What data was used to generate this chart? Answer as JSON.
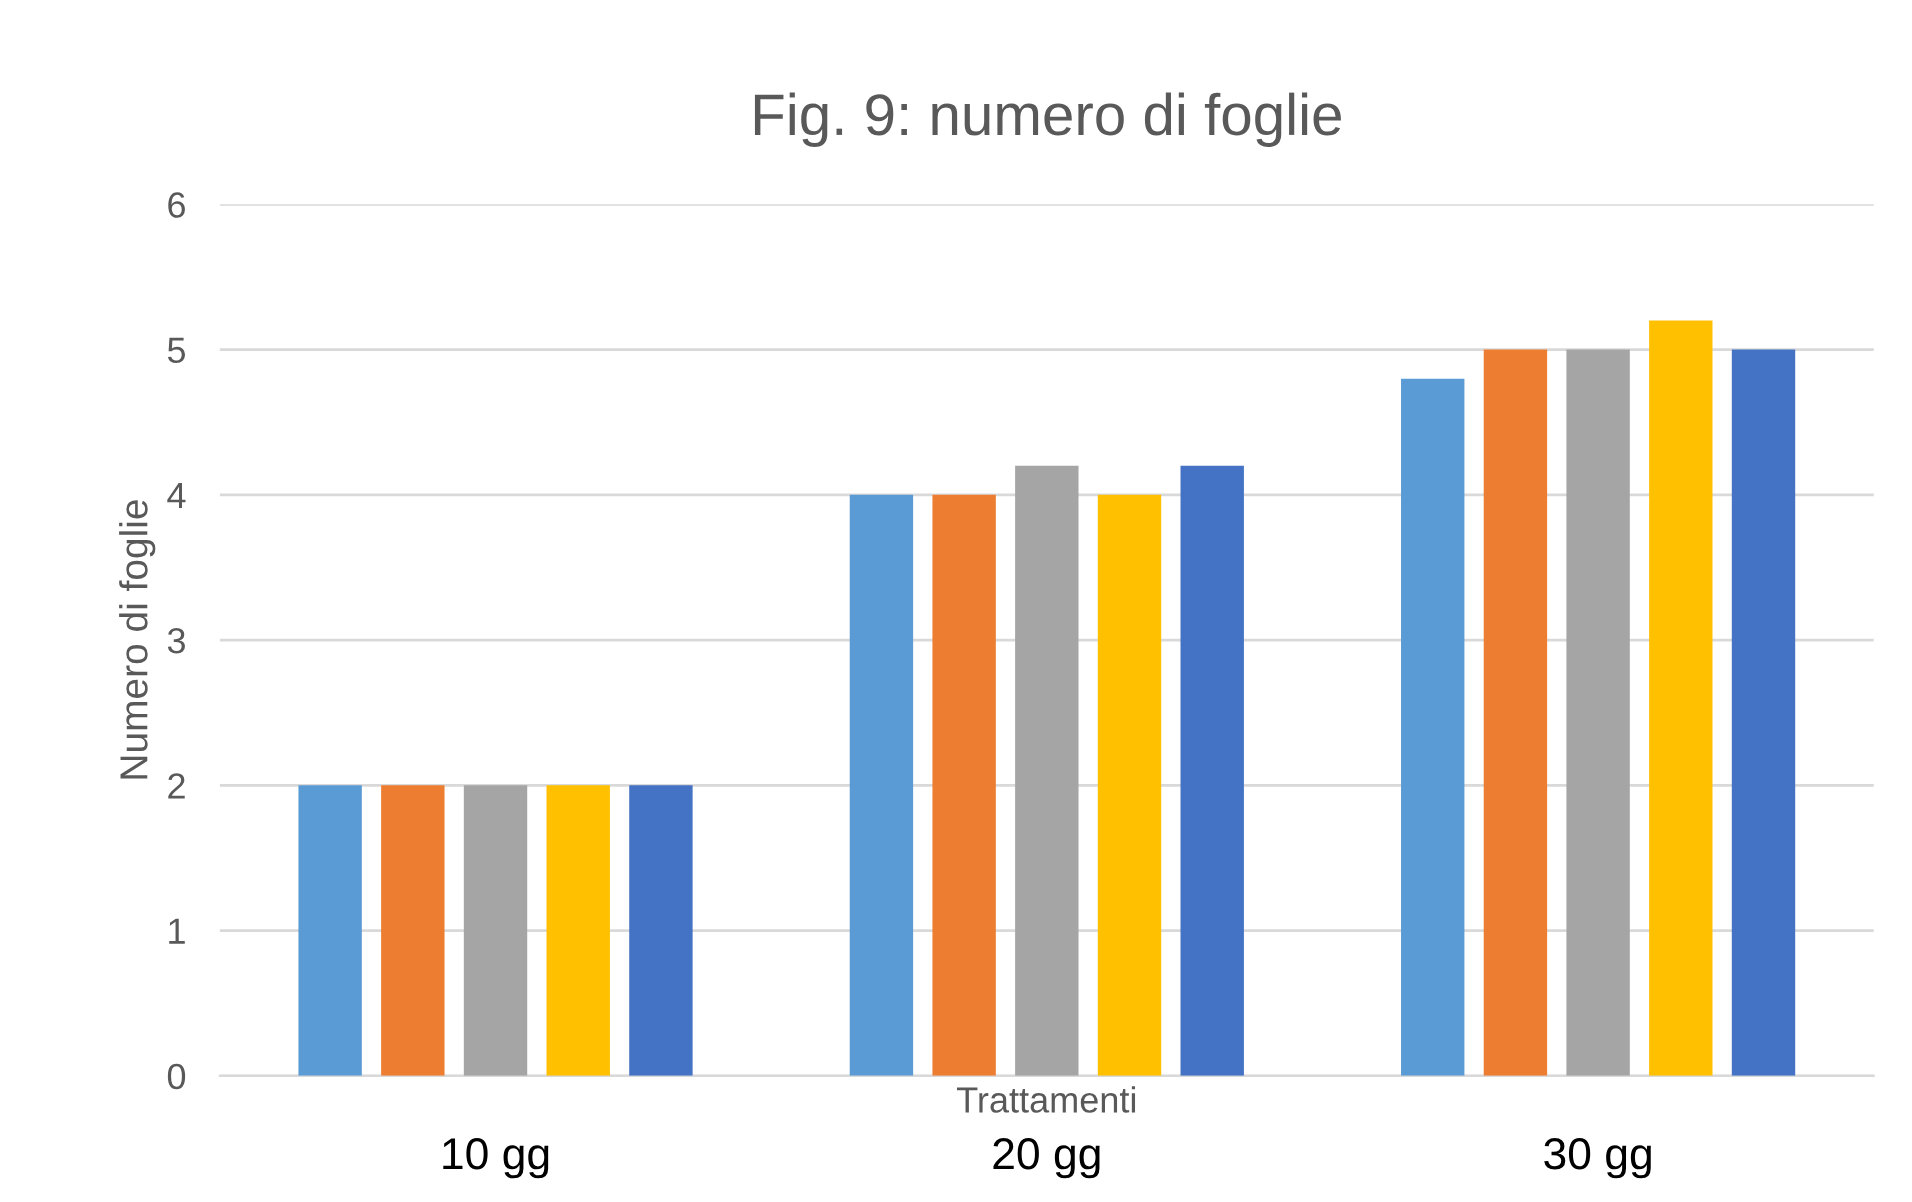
{
  "chart_data": {
    "type": "bar",
    "title": "Fig. 9: numero di foglie",
    "xlabel": "Trattamenti",
    "ylabel": "Numero di foglie",
    "categories": [
      "10 gg",
      "20 gg",
      "30 gg"
    ],
    "series": [
      {
        "color": "#5b9bd5",
        "values": [
          2,
          4,
          4.8
        ]
      },
      {
        "color": "#ed7d31",
        "values": [
          2,
          4,
          5
        ]
      },
      {
        "color": "#a5a5a5",
        "values": [
          2,
          4.2,
          5
        ]
      },
      {
        "color": "#ffc000",
        "values": [
          2,
          4,
          5.2
        ]
      },
      {
        "color": "#4472c4",
        "values": [
          2,
          4.2,
          5
        ]
      }
    ],
    "ylim": [
      0,
      6
    ],
    "yticks": [
      0,
      1,
      2,
      3,
      4,
      5,
      6
    ],
    "grid": "y",
    "legend": false
  }
}
